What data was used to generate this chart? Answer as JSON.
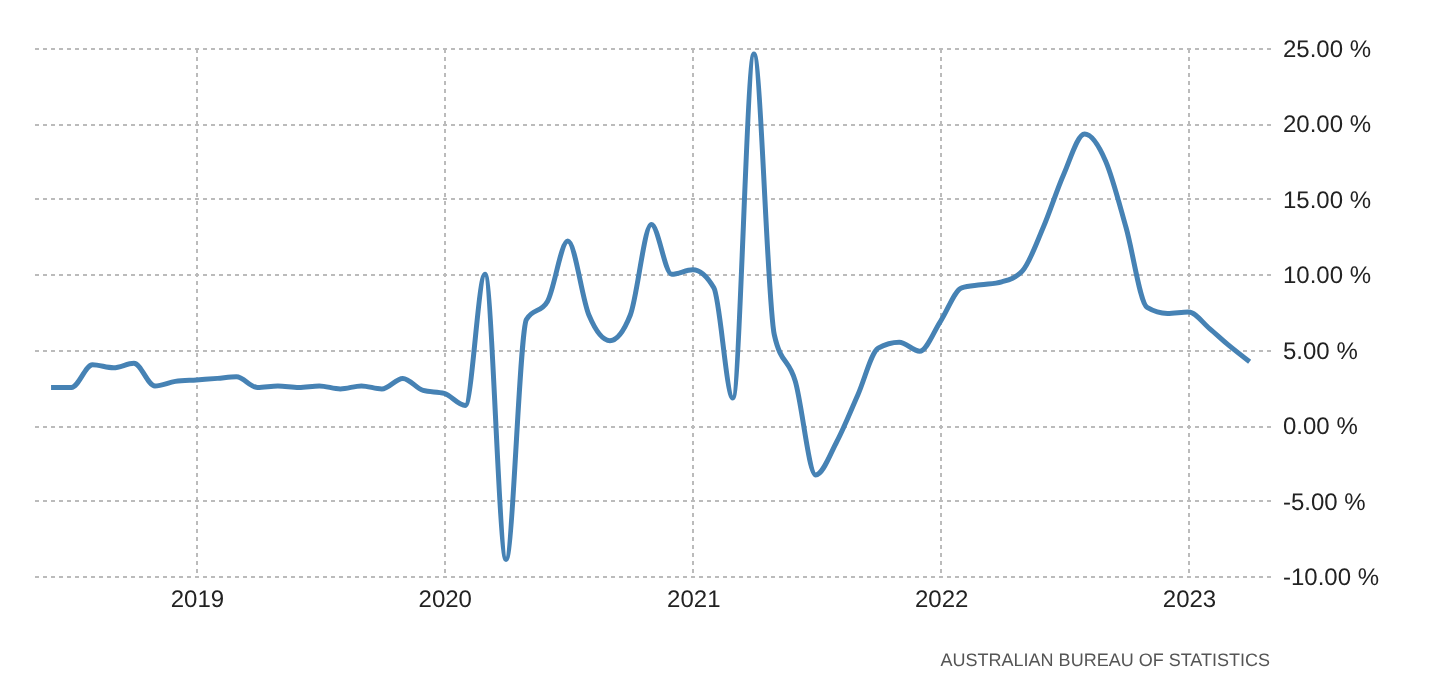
{
  "chart_data": {
    "type": "line",
    "x": [
      "2018-06",
      "2018-07",
      "2018-08",
      "2018-09",
      "2018-10",
      "2018-11",
      "2018-12",
      "2019-01",
      "2019-02",
      "2019-03",
      "2019-04",
      "2019-05",
      "2019-06",
      "2019-07",
      "2019-08",
      "2019-09",
      "2019-10",
      "2019-11",
      "2019-12",
      "2020-01",
      "2020-02",
      "2020-03",
      "2020-04",
      "2020-05",
      "2020-06",
      "2020-07",
      "2020-08",
      "2020-09",
      "2020-10",
      "2020-11",
      "2020-12",
      "2021-01",
      "2021-02",
      "2021-03",
      "2021-04",
      "2021-05",
      "2021-06",
      "2021-07",
      "2021-08",
      "2021-09",
      "2021-10",
      "2021-11",
      "2021-12",
      "2022-01",
      "2022-02",
      "2022-03",
      "2022-04",
      "2022-05",
      "2022-06",
      "2022-07",
      "2022-08",
      "2022-09",
      "2022-10",
      "2022-11",
      "2022-12",
      "2023-01",
      "2023-02",
      "2023-03",
      "2023-04"
    ],
    "series": [
      {
        "color": "#4682b4",
        "values": [
          2.5,
          2.5,
          4.0,
          3.8,
          4.1,
          2.6,
          2.9,
          3.0,
          3.1,
          3.2,
          2.5,
          2.6,
          2.5,
          2.6,
          2.4,
          2.6,
          2.4,
          3.1,
          2.3,
          2.1,
          1.3,
          10.0,
          -8.9,
          7.0,
          8.2,
          12.2,
          7.3,
          5.6,
          7.3,
          13.3,
          10.0,
          10.3,
          9.1,
          1.8,
          24.6,
          6.0,
          2.9,
          -3.3,
          -1.1,
          2.0,
          5.1,
          5.5,
          4.9,
          6.9,
          9.1,
          9.3,
          9.5,
          10.2,
          13.1,
          16.6,
          19.3,
          17.5,
          13.1,
          7.8,
          7.4,
          7.5,
          6.4,
          5.3,
          4.2
        ]
      }
    ],
    "xlim": [
      "2018-05",
      "2023-05"
    ],
    "xticks": [
      {
        "value": "2019-01",
        "label": "2019"
      },
      {
        "value": "2020-01",
        "label": "2020"
      },
      {
        "value": "2021-01",
        "label": "2021"
      },
      {
        "value": "2022-01",
        "label": "2022"
      },
      {
        "value": "2023-01",
        "label": "2023"
      }
    ],
    "ylim": [
      -10,
      25
    ],
    "yticks": [
      {
        "value": -10,
        "label": "-10.00 %"
      },
      {
        "value": -5,
        "label": "-5.00 %"
      },
      {
        "value": 0,
        "label": "0.00 %"
      },
      {
        "value": 5,
        "label": "5.00 %"
      },
      {
        "value": 10,
        "label": "10.00 %"
      },
      {
        "value": 15,
        "label": "15.00 %"
      },
      {
        "value": 20,
        "label": "20.00 %"
      },
      {
        "value": 25,
        "label": "25.00 %"
      }
    ],
    "grid": true,
    "marker": "none",
    "line_style": "solid",
    "annotations": [
      "AUSTRALIAN BUREAU OF STATISTICS"
    ]
  }
}
